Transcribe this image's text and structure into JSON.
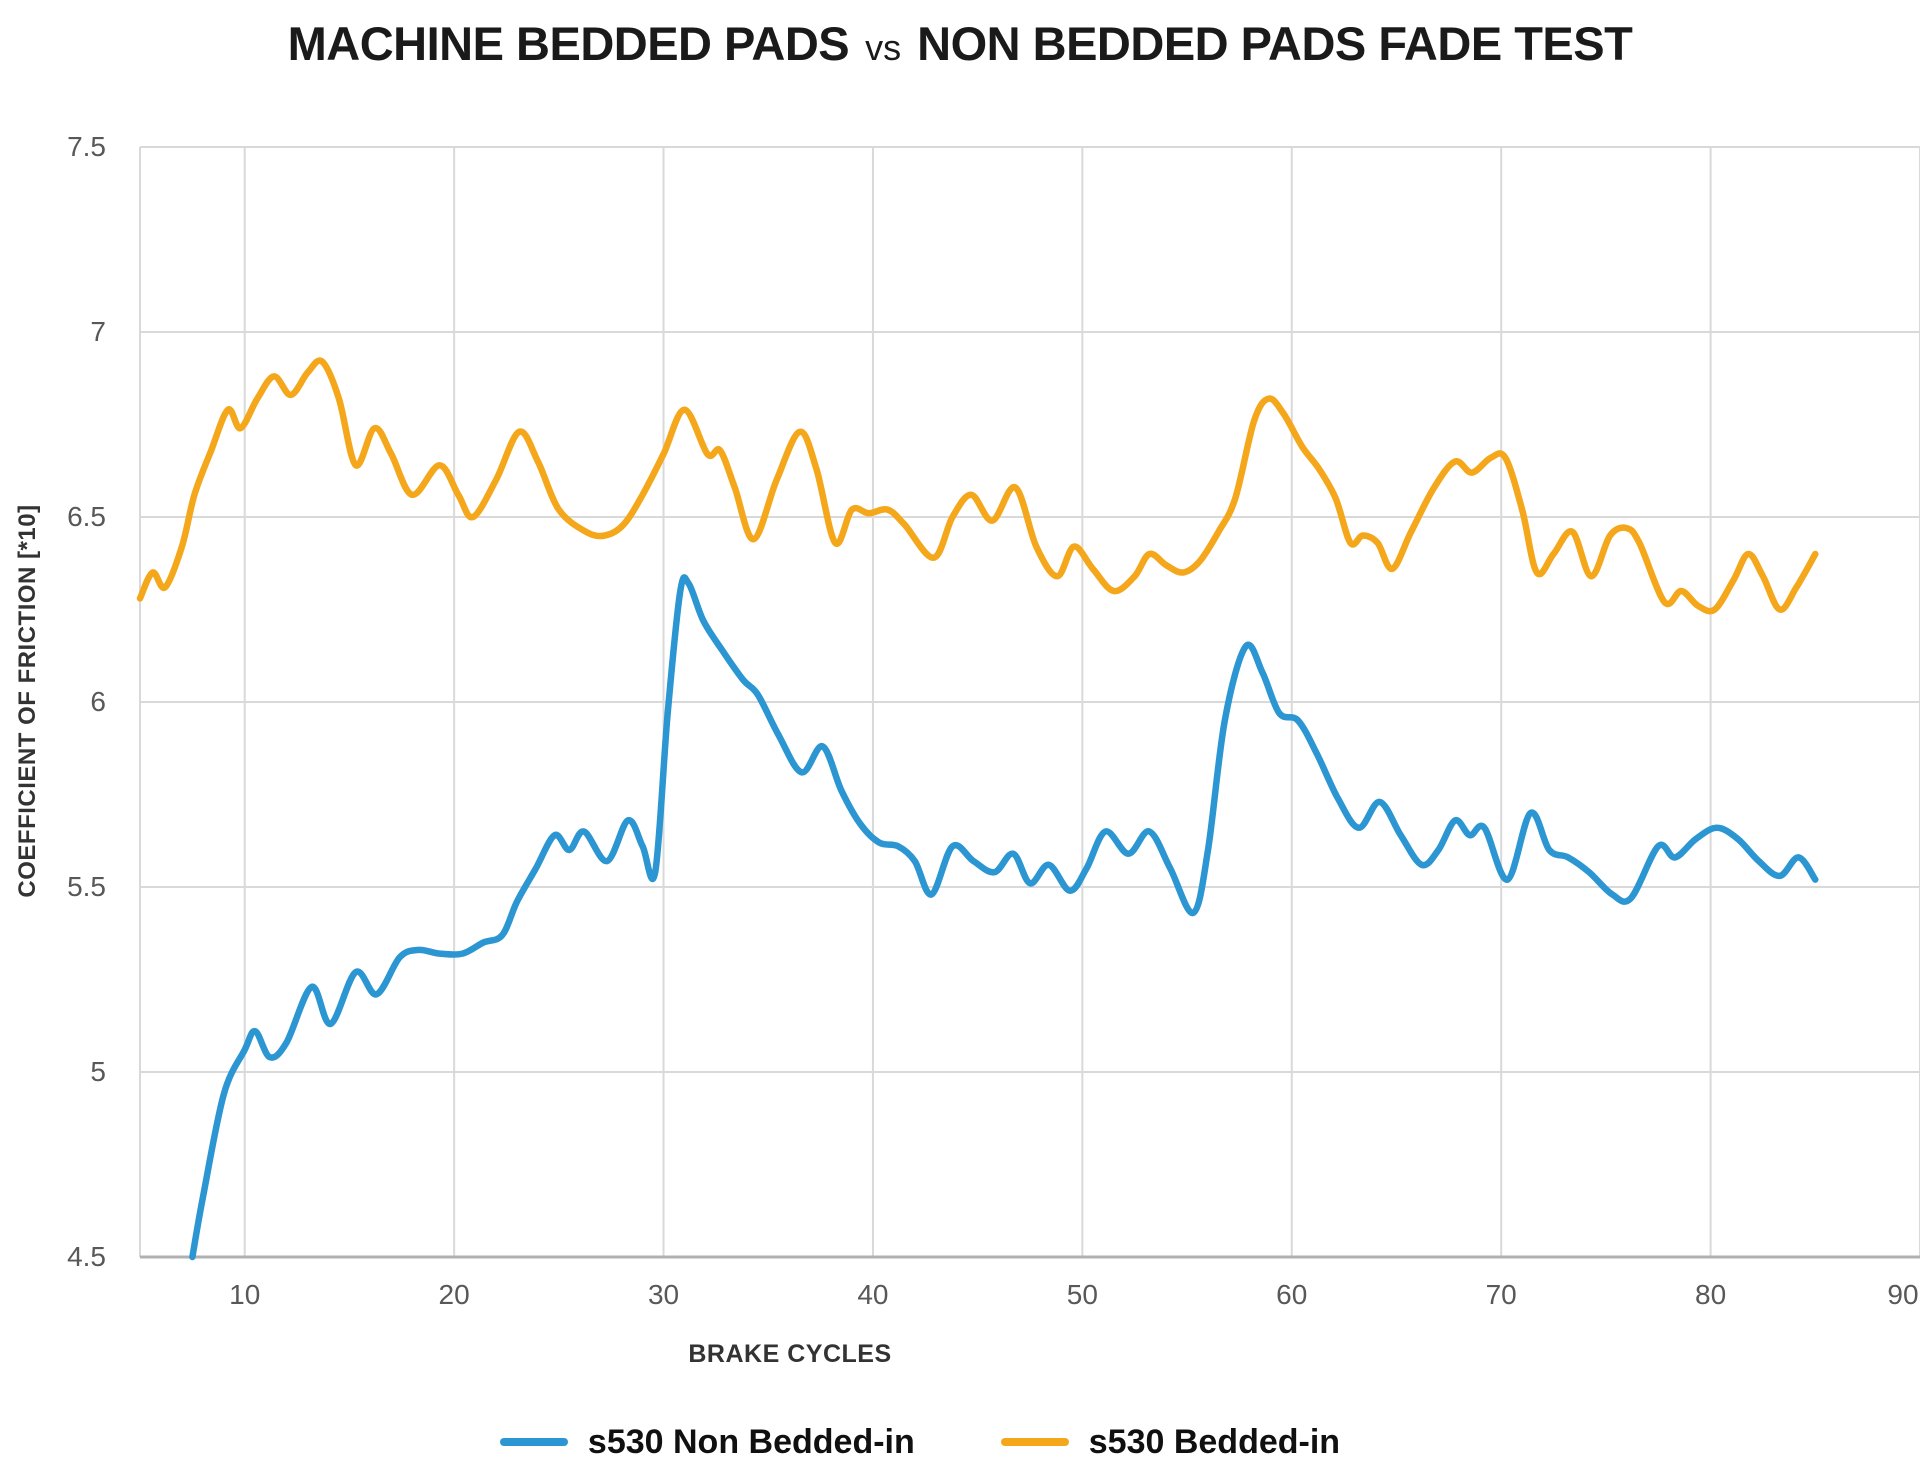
{
  "title": {
    "main": "MACHINE BEDDED PADS",
    "separator": "vs",
    "rest": "NON BEDDED PADS FADE TEST"
  },
  "colors": {
    "background": "#ffffff",
    "gridline": "#d9d9d9",
    "axis_line": "#b0b0b0",
    "tick_text": "#58585a",
    "axis_title_text": "#333333",
    "title_text": "#1a1a1a",
    "series_blue": "#2b96d2",
    "series_orange": "#f5a71b"
  },
  "chart_data": {
    "type": "line",
    "title": "MACHINE BEDDED PADS vs NON BEDDED PADS FADE TEST",
    "xlabel": "BRAKE CYCLES",
    "ylabel": "COEFFICIENT OF FRICTION [*10]",
    "xlim": [
      5,
      90
    ],
    "ylim": [
      4.5,
      7.5
    ],
    "grid": true,
    "legend_position": "bottom",
    "x_ticks": [
      10,
      20,
      30,
      40,
      50,
      60,
      70,
      80,
      90
    ],
    "y_ticks": [
      {
        "value": 7.5,
        "label": "7.5"
      },
      {
        "value": 7.0,
        "label": "7"
      },
      {
        "value": 6.5,
        "label": "6.5"
      },
      {
        "value": 6.0,
        "label": "6"
      },
      {
        "value": 5.5,
        "label": "5.5"
      },
      {
        "value": 5.0,
        "label": "5"
      },
      {
        "value": 4.5,
        "label": "4.5"
      }
    ],
    "series": [
      {
        "name": "s530 Non Bedded-in",
        "color": "#2b96d2",
        "points": [
          [
            7.5,
            4.5
          ],
          [
            8,
            4.66
          ],
          [
            9,
            4.94
          ],
          [
            10,
            5.06
          ],
          [
            10.5,
            5.11
          ],
          [
            11.2,
            5.04
          ],
          [
            12,
            5.08
          ],
          [
            13.2,
            5.23
          ],
          [
            14.1,
            5.13
          ],
          [
            15.3,
            5.27
          ],
          [
            16.3,
            5.21
          ],
          [
            17.4,
            5.31
          ],
          [
            18.3,
            5.33
          ],
          [
            19.3,
            5.32
          ],
          [
            20.4,
            5.32
          ],
          [
            21.4,
            5.35
          ],
          [
            22.3,
            5.37
          ],
          [
            23,
            5.46
          ],
          [
            23.9,
            5.55
          ],
          [
            24.8,
            5.64
          ],
          [
            25.5,
            5.6
          ],
          [
            26.2,
            5.65
          ],
          [
            27.3,
            5.57
          ],
          [
            28.3,
            5.68
          ],
          [
            29,
            5.61
          ],
          [
            29.6,
            5.54
          ],
          [
            30.2,
            5.97
          ],
          [
            30.8,
            6.3
          ],
          [
            31.2,
            6.32
          ],
          [
            31.9,
            6.22
          ],
          [
            32.8,
            6.14
          ],
          [
            33.8,
            6.06
          ],
          [
            34.5,
            6.02
          ],
          [
            35.5,
            5.91
          ],
          [
            36.6,
            5.81
          ],
          [
            37.6,
            5.88
          ],
          [
            38.5,
            5.76
          ],
          [
            39.4,
            5.67
          ],
          [
            40.3,
            5.62
          ],
          [
            41.2,
            5.61
          ],
          [
            42,
            5.57
          ],
          [
            42.8,
            5.48
          ],
          [
            43.8,
            5.61
          ],
          [
            44.8,
            5.57
          ],
          [
            45.8,
            5.54
          ],
          [
            46.7,
            5.59
          ],
          [
            47.5,
            5.51
          ],
          [
            48.4,
            5.56
          ],
          [
            49.4,
            5.49
          ],
          [
            50.2,
            5.55
          ],
          [
            51.1,
            5.65
          ],
          [
            52.2,
            5.59
          ],
          [
            53.2,
            5.65
          ],
          [
            54.2,
            5.55
          ],
          [
            55.3,
            5.43
          ],
          [
            56,
            5.6
          ],
          [
            56.8,
            5.95
          ],
          [
            57.8,
            6.15
          ],
          [
            58.6,
            6.08
          ],
          [
            59.4,
            5.97
          ],
          [
            60.3,
            5.95
          ],
          [
            61.2,
            5.86
          ],
          [
            62.2,
            5.74
          ],
          [
            63.2,
            5.66
          ],
          [
            64.2,
            5.73
          ],
          [
            65.2,
            5.64
          ],
          [
            66.2,
            5.56
          ],
          [
            67,
            5.6
          ],
          [
            67.8,
            5.68
          ],
          [
            68.5,
            5.64
          ],
          [
            69.2,
            5.66
          ],
          [
            70.3,
            5.52
          ],
          [
            71.4,
            5.7
          ],
          [
            72.3,
            5.6
          ],
          [
            73.2,
            5.58
          ],
          [
            74.2,
            5.54
          ],
          [
            75.3,
            5.48
          ],
          [
            76.2,
            5.47
          ],
          [
            77.5,
            5.61
          ],
          [
            78.3,
            5.58
          ],
          [
            79.3,
            5.63
          ],
          [
            80.3,
            5.66
          ],
          [
            81.3,
            5.63
          ],
          [
            82.3,
            5.57
          ],
          [
            83.3,
            5.53
          ],
          [
            84.2,
            5.58
          ],
          [
            85,
            5.52
          ]
        ]
      },
      {
        "name": "s530 Bedded-in",
        "color": "#f5a71b",
        "points": [
          [
            5,
            6.28
          ],
          [
            5.6,
            6.35
          ],
          [
            6.2,
            6.31
          ],
          [
            7,
            6.42
          ],
          [
            7.6,
            6.56
          ],
          [
            8.4,
            6.68
          ],
          [
            9.2,
            6.79
          ],
          [
            9.8,
            6.74
          ],
          [
            10.6,
            6.82
          ],
          [
            11.4,
            6.88
          ],
          [
            12.2,
            6.83
          ],
          [
            13,
            6.89
          ],
          [
            13.7,
            6.92
          ],
          [
            14.5,
            6.82
          ],
          [
            15.3,
            6.64
          ],
          [
            16.2,
            6.74
          ],
          [
            17,
            6.67
          ],
          [
            18,
            6.56
          ],
          [
            19.3,
            6.64
          ],
          [
            20.2,
            6.56
          ],
          [
            20.9,
            6.5
          ],
          [
            22,
            6.6
          ],
          [
            23.1,
            6.73
          ],
          [
            24,
            6.65
          ],
          [
            25,
            6.52
          ],
          [
            26.3,
            6.46
          ],
          [
            27.2,
            6.45
          ],
          [
            28.1,
            6.48
          ],
          [
            29,
            6.56
          ],
          [
            30,
            6.67
          ],
          [
            31,
            6.79
          ],
          [
            32.1,
            6.67
          ],
          [
            32.7,
            6.68
          ],
          [
            33.4,
            6.58
          ],
          [
            34.3,
            6.44
          ],
          [
            35.4,
            6.6
          ],
          [
            36.5,
            6.73
          ],
          [
            37.3,
            6.63
          ],
          [
            38.2,
            6.43
          ],
          [
            39,
            6.52
          ],
          [
            39.8,
            6.51
          ],
          [
            40.7,
            6.52
          ],
          [
            41.5,
            6.48
          ],
          [
            42.9,
            6.39
          ],
          [
            43.8,
            6.5
          ],
          [
            44.7,
            6.56
          ],
          [
            45.7,
            6.49
          ],
          [
            46.8,
            6.58
          ],
          [
            47.8,
            6.42
          ],
          [
            48.8,
            6.34
          ],
          [
            49.6,
            6.42
          ],
          [
            50.5,
            6.36
          ],
          [
            51.5,
            6.3
          ],
          [
            52.5,
            6.34
          ],
          [
            53.2,
            6.4
          ],
          [
            54,
            6.37
          ],
          [
            54.8,
            6.35
          ],
          [
            55.6,
            6.38
          ],
          [
            56.5,
            6.46
          ],
          [
            57.3,
            6.55
          ],
          [
            58.2,
            6.76
          ],
          [
            58.9,
            6.82
          ],
          [
            59.6,
            6.78
          ],
          [
            60.5,
            6.69
          ],
          [
            61.3,
            6.63
          ],
          [
            62.1,
            6.55
          ],
          [
            62.8,
            6.43
          ],
          [
            63.4,
            6.45
          ],
          [
            64.1,
            6.43
          ],
          [
            64.8,
            6.36
          ],
          [
            65.7,
            6.46
          ],
          [
            66.8,
            6.58
          ],
          [
            67.8,
            6.65
          ],
          [
            68.6,
            6.62
          ],
          [
            69.5,
            6.66
          ],
          [
            70.2,
            6.66
          ],
          [
            71,
            6.52
          ],
          [
            71.7,
            6.35
          ],
          [
            72.5,
            6.4
          ],
          [
            73.4,
            6.46
          ],
          [
            74.3,
            6.34
          ],
          [
            75.2,
            6.45
          ],
          [
            76,
            6.47
          ],
          [
            76.6,
            6.43
          ],
          [
            77.8,
            6.27
          ],
          [
            78.6,
            6.3
          ],
          [
            79.4,
            6.26
          ],
          [
            80.2,
            6.25
          ],
          [
            81.1,
            6.33
          ],
          [
            81.8,
            6.4
          ],
          [
            82.5,
            6.34
          ],
          [
            83.3,
            6.25
          ],
          [
            84.1,
            6.31
          ],
          [
            85,
            6.4
          ]
        ]
      }
    ]
  }
}
